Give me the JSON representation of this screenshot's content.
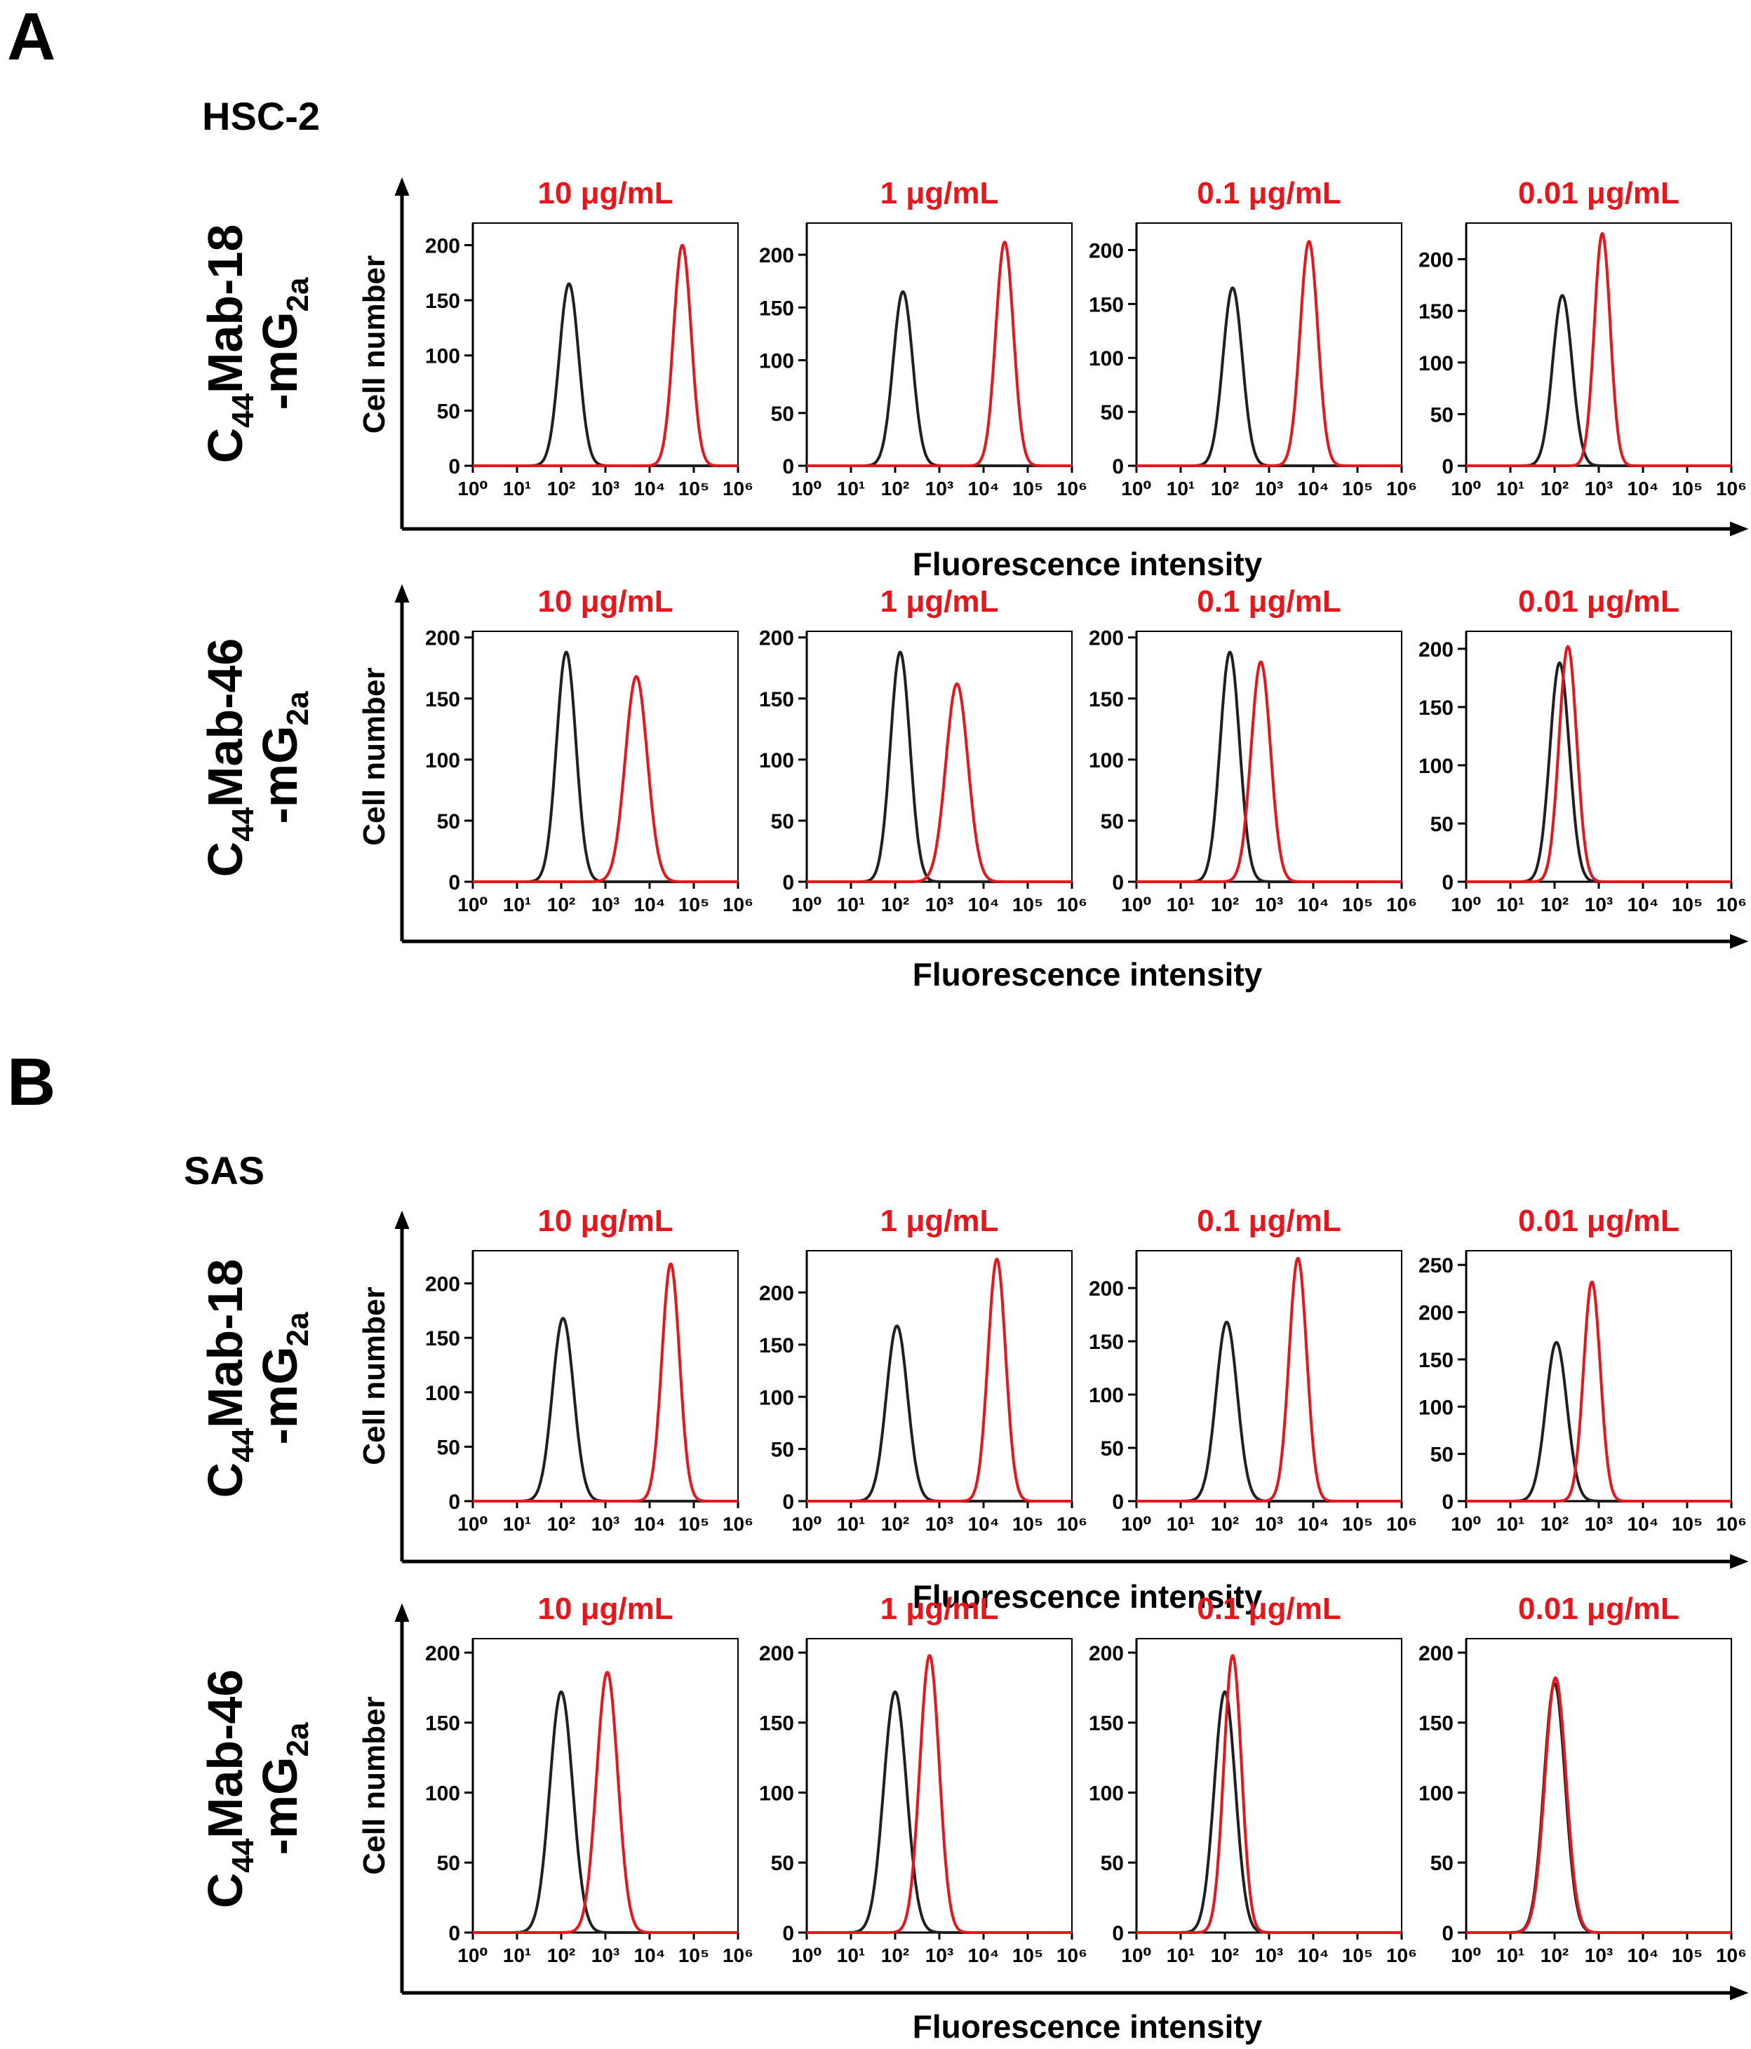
{
  "figure": {
    "colors": {
      "isotype": "#231f20",
      "antibody": "#e8151b",
      "axis": "#000000"
    },
    "panels": [
      {
        "letter": "A",
        "cell_line": "HSC-2",
        "rows": [
          {
            "label_main": "C",
            "label_sub": "44",
            "label_rest": "Mab-18",
            "label_line2_main": "-mG",
            "label_line2_sub": "2a",
            "xlabel": "Fluorescence intensity",
            "ylabel": "Cell number"
          },
          {
            "label_main": "C",
            "label_sub": "44",
            "label_rest": "Mab-46",
            "label_line2_main": "-mG",
            "label_line2_sub": "2a",
            "xlabel": "Fluorescence intensity",
            "ylabel": "Cell number"
          }
        ]
      },
      {
        "letter": "B",
        "cell_line": "SAS",
        "rows": [
          {
            "label_main": "C",
            "label_sub": "44",
            "label_rest": "Mab-18",
            "label_line2_main": "-mG",
            "label_line2_sub": "2a",
            "xlabel": "Fluorescence intensity",
            "ylabel": "Cell number"
          },
          {
            "label_main": "C",
            "label_sub": "44",
            "label_rest": "Mab-46",
            "label_line2_main": "-mG",
            "label_line2_sub": "2a",
            "xlabel": "Fluorescence intensity",
            "ylabel": "Cell number"
          }
        ]
      }
    ]
  },
  "chart_data": [
    {
      "type": "line",
      "panel": "A",
      "cell_line": "HSC-2",
      "antibody": "C44Mab-18-mG2a",
      "title": "10 μg/mL",
      "x_scale": "log10",
      "xlim": [
        1,
        1000000
      ],
      "xticks": [
        "10⁰",
        "10¹",
        "10²",
        "10³",
        "10⁴",
        "10⁵",
        "10⁶"
      ],
      "yticks": [
        0,
        50,
        100,
        150,
        200
      ],
      "ylim": [
        0,
        220
      ],
      "series": [
        {
          "color": "black",
          "peak_x": 150,
          "peak_y": 165,
          "width_decades": 0.22
        },
        {
          "color": "red",
          "peak_x": 55000,
          "peak_y": 200,
          "width_decades": 0.2
        }
      ]
    },
    {
      "type": "line",
      "panel": "A",
      "cell_line": "HSC-2",
      "antibody": "C44Mab-18-mG2a",
      "title": "1 μg/mL",
      "x_scale": "log10",
      "xlim": [
        1,
        1000000
      ],
      "xticks": [
        "10⁰",
        "10¹",
        "10²",
        "10³",
        "10⁴",
        "10⁵",
        "10⁶"
      ],
      "yticks": [
        0,
        50,
        100,
        150,
        200
      ],
      "ylim": [
        0,
        230
      ],
      "series": [
        {
          "color": "black",
          "peak_x": 150,
          "peak_y": 165,
          "width_decades": 0.22
        },
        {
          "color": "red",
          "peak_x": 30000,
          "peak_y": 212,
          "width_decades": 0.2
        }
      ]
    },
    {
      "type": "line",
      "panel": "A",
      "cell_line": "HSC-2",
      "antibody": "C44Mab-18-mG2a",
      "title": "0.1 μg/mL",
      "x_scale": "log10",
      "xlim": [
        1,
        1000000
      ],
      "xticks": [
        "10⁰",
        "10¹",
        "10²",
        "10³",
        "10⁴",
        "10⁵",
        "10⁶"
      ],
      "yticks": [
        0,
        50,
        100,
        150,
        200
      ],
      "ylim": [
        0,
        225
      ],
      "series": [
        {
          "color": "black",
          "peak_x": 150,
          "peak_y": 165,
          "width_decades": 0.22
        },
        {
          "color": "red",
          "peak_x": 8000,
          "peak_y": 208,
          "width_decades": 0.2
        }
      ]
    },
    {
      "type": "line",
      "panel": "A",
      "cell_line": "HSC-2",
      "antibody": "C44Mab-18-mG2a",
      "title": "0.01 μg/mL",
      "x_scale": "log10",
      "xlim": [
        1,
        1000000
      ],
      "xticks": [
        "10⁰",
        "10¹",
        "10²",
        "10³",
        "10⁴",
        "10⁵",
        "10⁶"
      ],
      "yticks": [
        0,
        50,
        100,
        150,
        200
      ],
      "ylim": [
        0,
        235
      ],
      "series": [
        {
          "color": "black",
          "peak_x": 150,
          "peak_y": 165,
          "width_decades": 0.22
        },
        {
          "color": "red",
          "peak_x": 1200,
          "peak_y": 225,
          "width_decades": 0.18
        }
      ]
    },
    {
      "type": "line",
      "panel": "A",
      "cell_line": "HSC-2",
      "antibody": "C44Mab-46-mG2a",
      "title": "10 μg/mL",
      "x_scale": "log10",
      "xlim": [
        1,
        1000000
      ],
      "xticks": [
        "10⁰",
        "10¹",
        "10²",
        "10³",
        "10⁴",
        "10⁵",
        "10⁶"
      ],
      "yticks": [
        0,
        50,
        100,
        150,
        200
      ],
      "ylim": [
        0,
        205
      ],
      "series": [
        {
          "color": "black",
          "peak_x": 130,
          "peak_y": 188,
          "width_decades": 0.22
        },
        {
          "color": "red",
          "peak_x": 5000,
          "peak_y": 168,
          "width_decades": 0.25
        }
      ]
    },
    {
      "type": "line",
      "panel": "A",
      "cell_line": "HSC-2",
      "antibody": "C44Mab-46-mG2a",
      "title": "1 μg/mL",
      "x_scale": "log10",
      "xlim": [
        1,
        1000000
      ],
      "xticks": [
        "10⁰",
        "10¹",
        "10²",
        "10³",
        "10⁴",
        "10⁵",
        "10⁶"
      ],
      "yticks": [
        0,
        50,
        100,
        150,
        200
      ],
      "ylim": [
        0,
        205
      ],
      "series": [
        {
          "color": "black",
          "peak_x": 130,
          "peak_y": 188,
          "width_decades": 0.22
        },
        {
          "color": "red",
          "peak_x": 2500,
          "peak_y": 162,
          "width_decades": 0.25
        }
      ]
    },
    {
      "type": "line",
      "panel": "A",
      "cell_line": "HSC-2",
      "antibody": "C44Mab-46-mG2a",
      "title": "0.1 μg/mL",
      "x_scale": "log10",
      "xlim": [
        1,
        1000000
      ],
      "xticks": [
        "10⁰",
        "10¹",
        "10²",
        "10³",
        "10⁴",
        "10⁵",
        "10⁶"
      ],
      "yticks": [
        0,
        50,
        100,
        150,
        200
      ],
      "ylim": [
        0,
        205
      ],
      "series": [
        {
          "color": "black",
          "peak_x": 130,
          "peak_y": 188,
          "width_decades": 0.22
        },
        {
          "color": "red",
          "peak_x": 650,
          "peak_y": 180,
          "width_decades": 0.22
        }
      ]
    },
    {
      "type": "line",
      "panel": "A",
      "cell_line": "HSC-2",
      "antibody": "C44Mab-46-mG2a",
      "title": "0.01 μg/mL",
      "x_scale": "log10",
      "xlim": [
        1,
        1000000
      ],
      "xticks": [
        "10⁰",
        "10¹",
        "10²",
        "10³",
        "10⁴",
        "10⁵",
        "10⁶"
      ],
      "yticks": [
        0,
        50,
        100,
        150,
        200
      ],
      "ylim": [
        0,
        215
      ],
      "series": [
        {
          "color": "black",
          "peak_x": 130,
          "peak_y": 188,
          "width_decades": 0.22
        },
        {
          "color": "red",
          "peak_x": 200,
          "peak_y": 202,
          "width_decades": 0.2
        }
      ]
    },
    {
      "type": "line",
      "panel": "B",
      "cell_line": "SAS",
      "antibody": "C44Mab-18-mG2a",
      "title": "10 μg/mL",
      "x_scale": "log10",
      "xlim": [
        1,
        1000000
      ],
      "xticks": [
        "10⁰",
        "10¹",
        "10²",
        "10³",
        "10⁴",
        "10⁵",
        "10⁶"
      ],
      "yticks": [
        0,
        50,
        100,
        150,
        200
      ],
      "ylim": [
        0,
        230
      ],
      "series": [
        {
          "color": "black",
          "peak_x": 110,
          "peak_y": 168,
          "width_decades": 0.24
        },
        {
          "color": "red",
          "peak_x": 30000,
          "peak_y": 218,
          "width_decades": 0.2
        }
      ]
    },
    {
      "type": "line",
      "panel": "B",
      "cell_line": "SAS",
      "antibody": "C44Mab-18-mG2a",
      "title": "1 μg/mL",
      "x_scale": "log10",
      "xlim": [
        1,
        1000000
      ],
      "xticks": [
        "10⁰",
        "10¹",
        "10²",
        "10³",
        "10⁴",
        "10⁵",
        "10⁶"
      ],
      "yticks": [
        0,
        50,
        100,
        150,
        200
      ],
      "ylim": [
        0,
        240
      ],
      "series": [
        {
          "color": "black",
          "peak_x": 110,
          "peak_y": 168,
          "width_decades": 0.24
        },
        {
          "color": "red",
          "peak_x": 20000,
          "peak_y": 232,
          "width_decades": 0.2
        }
      ]
    },
    {
      "type": "line",
      "panel": "B",
      "cell_line": "SAS",
      "antibody": "C44Mab-18-mG2a",
      "title": "0.1 μg/mL",
      "x_scale": "log10",
      "xlim": [
        1,
        1000000
      ],
      "xticks": [
        "10⁰",
        "10¹",
        "10²",
        "10³",
        "10⁴",
        "10⁵",
        "10⁶"
      ],
      "yticks": [
        0,
        50,
        100,
        150,
        200
      ],
      "ylim": [
        0,
        235
      ],
      "series": [
        {
          "color": "black",
          "peak_x": 110,
          "peak_y": 168,
          "width_decades": 0.24
        },
        {
          "color": "red",
          "peak_x": 4500,
          "peak_y": 228,
          "width_decades": 0.2
        }
      ]
    },
    {
      "type": "line",
      "panel": "B",
      "cell_line": "SAS",
      "antibody": "C44Mab-18-mG2a",
      "title": "0.01 μg/mL",
      "x_scale": "log10",
      "xlim": [
        1,
        1000000
      ],
      "xticks": [
        "10⁰",
        "10¹",
        "10²",
        "10³",
        "10⁴",
        "10⁵",
        "10⁶"
      ],
      "yticks": [
        0,
        50,
        100,
        150,
        200,
        250
      ],
      "ylim": [
        0,
        265
      ],
      "series": [
        {
          "color": "black",
          "peak_x": 110,
          "peak_y": 168,
          "width_decades": 0.24
        },
        {
          "color": "red",
          "peak_x": 700,
          "peak_y": 232,
          "width_decades": 0.19
        }
      ]
    },
    {
      "type": "line",
      "panel": "B",
      "cell_line": "SAS",
      "antibody": "C44Mab-46-mG2a",
      "title": "10 μg/mL",
      "x_scale": "log10",
      "xlim": [
        1,
        1000000
      ],
      "xticks": [
        "10⁰",
        "10¹",
        "10²",
        "10³",
        "10⁴",
        "10⁵",
        "10⁶"
      ],
      "yticks": [
        0,
        50,
        100,
        150,
        200
      ],
      "ylim": [
        0,
        210
      ],
      "series": [
        {
          "color": "black",
          "peak_x": 100,
          "peak_y": 172,
          "width_decades": 0.26
        },
        {
          "color": "red",
          "peak_x": 1100,
          "peak_y": 186,
          "width_decades": 0.24
        }
      ]
    },
    {
      "type": "line",
      "panel": "B",
      "cell_line": "SAS",
      "antibody": "C44Mab-46-mG2a",
      "title": "1 μg/mL",
      "x_scale": "log10",
      "xlim": [
        1,
        1000000
      ],
      "xticks": [
        "10⁰",
        "10¹",
        "10²",
        "10³",
        "10⁴",
        "10⁵",
        "10⁶"
      ],
      "yticks": [
        0,
        50,
        100,
        150,
        200
      ],
      "ylim": [
        0,
        210
      ],
      "series": [
        {
          "color": "black",
          "peak_x": 100,
          "peak_y": 172,
          "width_decades": 0.26
        },
        {
          "color": "red",
          "peak_x": 600,
          "peak_y": 198,
          "width_decades": 0.22
        }
      ]
    },
    {
      "type": "line",
      "panel": "B",
      "cell_line": "SAS",
      "antibody": "C44Mab-46-mG2a",
      "title": "0.1 μg/mL",
      "x_scale": "log10",
      "xlim": [
        1,
        1000000
      ],
      "xticks": [
        "10⁰",
        "10¹",
        "10²",
        "10³",
        "10⁴",
        "10⁵",
        "10⁶"
      ],
      "yticks": [
        0,
        50,
        100,
        150,
        200
      ],
      "ylim": [
        0,
        210
      ],
      "series": [
        {
          "color": "black",
          "peak_x": 100,
          "peak_y": 172,
          "width_decades": 0.24
        },
        {
          "color": "red",
          "peak_x": 150,
          "peak_y": 198,
          "width_decades": 0.2
        }
      ]
    },
    {
      "type": "line",
      "panel": "B",
      "cell_line": "SAS",
      "antibody": "C44Mab-46-mG2a",
      "title": "0.01 μg/mL",
      "x_scale": "log10",
      "xlim": [
        1,
        1000000
      ],
      "xticks": [
        "10⁰",
        "10¹",
        "10²",
        "10³",
        "10⁴",
        "10⁵",
        "10⁶"
      ],
      "yticks": [
        0,
        50,
        100,
        150,
        200
      ],
      "ylim": [
        0,
        210
      ],
      "series": [
        {
          "color": "black",
          "peak_x": 100,
          "peak_y": 178,
          "width_decades": 0.24
        },
        {
          "color": "red",
          "peak_x": 105,
          "peak_y": 182,
          "width_decades": 0.24
        }
      ]
    }
  ]
}
